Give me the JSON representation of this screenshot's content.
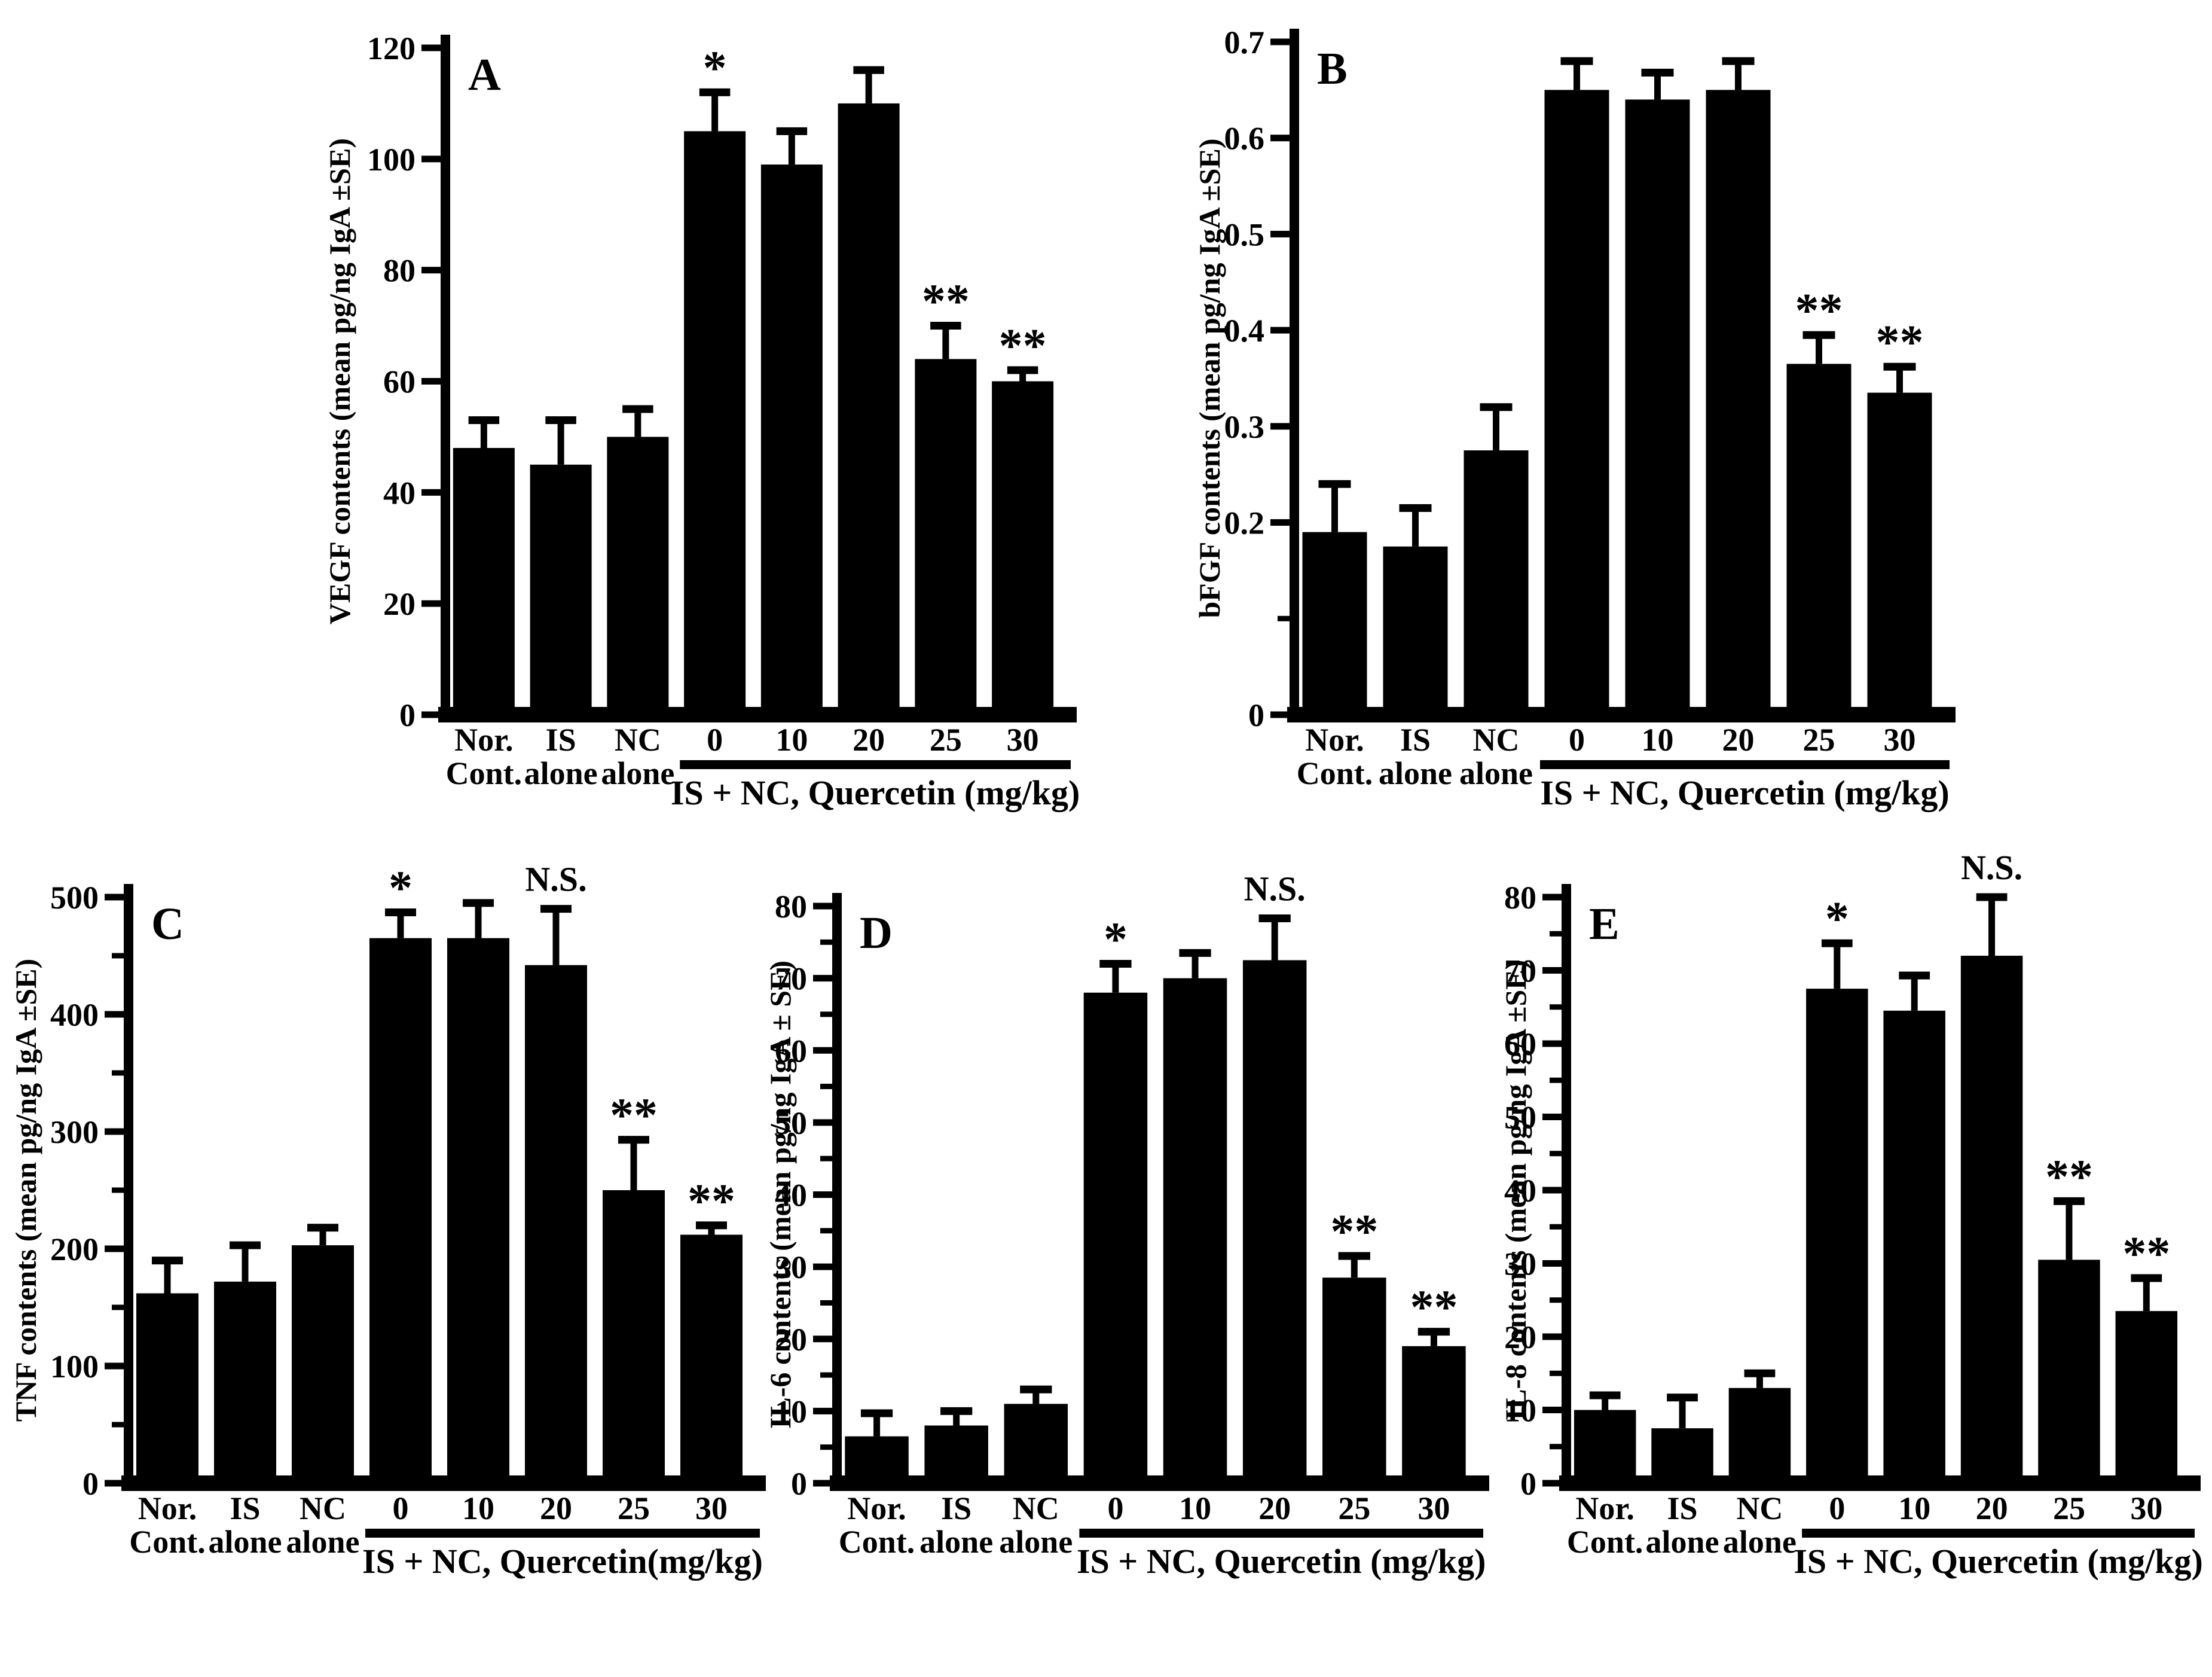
{
  "figure": {
    "description": "Five-panel bar chart figure showing effects of Quercetin on mediator contents",
    "colors": {
      "ink": "#000000",
      "background": "#ffffff"
    }
  },
  "chart_data": [
    {
      "type": "bar",
      "letter": "A",
      "ylabel": "VEGF contents (mean pg/ng IgA ±SE)",
      "ylim": [
        0,
        120
      ],
      "yticks": [
        0,
        20,
        40,
        60,
        80,
        100,
        120
      ],
      "ytick_labels": [
        "0",
        "20",
        "40",
        "60",
        "80",
        "100",
        "120"
      ],
      "minor_ticks": [],
      "grid": false,
      "categories": [
        [
          "Nor.",
          "Cont."
        ],
        [
          "IS",
          "alone"
        ],
        [
          "NC",
          "alone"
        ],
        [
          "0"
        ],
        [
          "10"
        ],
        [
          "20"
        ],
        [
          "25"
        ],
        [
          "30"
        ]
      ],
      "values": [
        48,
        45,
        50,
        105,
        99,
        110,
        64,
        60
      ],
      "errors": [
        5,
        8,
        5,
        7,
        6,
        6,
        6,
        2
      ],
      "sig": [
        "",
        "",
        "",
        "*",
        "",
        "",
        "**",
        "**"
      ],
      "group_label": "IS + NC, Quercetin (mg/kg)",
      "group_start_index": 3
    },
    {
      "type": "bar",
      "letter": "B",
      "ylabel": "bFGF contents (mean pg/ng IgA ±SE)",
      "ylim": [
        0,
        0.7
      ],
      "yticks": [
        0,
        0.2,
        0.3,
        0.4,
        0.5,
        0.6,
        0.7
      ],
      "ytick_labels": [
        "0",
        "0.2",
        "0.3",
        "0.4",
        "0.5",
        "0.6",
        "0.7"
      ],
      "minor_ticks": [
        0.1
      ],
      "grid": false,
      "categories": [
        [
          "Nor.",
          "Cont."
        ],
        [
          "IS",
          "alone"
        ],
        [
          "NC",
          "alone"
        ],
        [
          "0"
        ],
        [
          "10"
        ],
        [
          "20"
        ],
        [
          "25"
        ],
        [
          "30"
        ]
      ],
      "values": [
        0.19,
        0.175,
        0.275,
        0.65,
        0.64,
        0.65,
        0.365,
        0.335
      ],
      "errors": [
        0.05,
        0.04,
        0.045,
        0.03,
        0.028,
        0.03,
        0.03,
        0.027
      ],
      "sig": [
        "",
        "",
        "",
        "",
        "",
        "",
        "**",
        "**"
      ],
      "group_label": "IS + NC, Quercetin (mg/kg)",
      "group_start_index": 3
    },
    {
      "type": "bar",
      "letter": "C",
      "ylabel": "TNF contents (mean pg/ng IgA ±SE)",
      "ylim": [
        0,
        500
      ],
      "yticks": [
        0,
        100,
        200,
        300,
        400,
        500
      ],
      "ytick_labels": [
        "0",
        "100",
        "200",
        "300",
        "400",
        "500"
      ],
      "minor_ticks": [
        50,
        150,
        250,
        350,
        450
      ],
      "grid": false,
      "categories": [
        [
          "Nor.",
          "Cont."
        ],
        [
          "IS",
          "alone"
        ],
        [
          "NC",
          "alone"
        ],
        [
          "0"
        ],
        [
          "10"
        ],
        [
          "20"
        ],
        [
          "25"
        ],
        [
          "30"
        ]
      ],
      "values": [
        162,
        172,
        203,
        465,
        465,
        442,
        250,
        212
      ],
      "errors": [
        28,
        31,
        15,
        22,
        30,
        48,
        43,
        8
      ],
      "sig": [
        "",
        "",
        "",
        "*",
        "",
        "N.S.",
        "**",
        "**"
      ],
      "group_label": "IS + NC, Quercetin(mg/kg)",
      "group_start_index": 3
    },
    {
      "type": "bar",
      "letter": "D",
      "ylabel": "IL-6 contents (mean pg/ng IgA ± SE)",
      "ylim": [
        0,
        80
      ],
      "yticks": [
        0,
        10,
        20,
        30,
        40,
        50,
        60,
        70,
        80
      ],
      "ytick_labels": [
        "0",
        "10",
        "20",
        "30",
        "40",
        "50",
        "60",
        "70",
        "80"
      ],
      "minor_ticks": [
        5,
        15,
        25,
        35,
        45,
        55,
        65,
        75
      ],
      "grid": false,
      "categories": [
        [
          "Nor.",
          "Cont."
        ],
        [
          "IS",
          "alone"
        ],
        [
          "NC",
          "alone"
        ],
        [
          "0"
        ],
        [
          "10"
        ],
        [
          "20"
        ],
        [
          "25"
        ],
        [
          "30"
        ]
      ],
      "values": [
        6.5,
        8,
        11,
        68,
        70,
        72.5,
        28.5,
        19
      ],
      "errors": [
        3.2,
        2,
        2,
        4,
        3.5,
        5.8,
        3,
        2
      ],
      "sig": [
        "",
        "",
        "",
        "*",
        "",
        "N.S.",
        "**",
        "**"
      ],
      "group_label": "IS + NC, Quercetin (mg/kg)",
      "group_start_index": 3
    },
    {
      "type": "bar",
      "letter": "E",
      "ylabel": "IL-8 contents (mean pg/ng IgA ±SE)",
      "ylim": [
        0,
        80
      ],
      "yticks": [
        0,
        10,
        20,
        30,
        40,
        50,
        60,
        70,
        80
      ],
      "ytick_labels": [
        "0",
        "10",
        "20",
        "30",
        "40",
        "50",
        "60",
        "70",
        "80"
      ],
      "minor_ticks": [
        5,
        15,
        25,
        35,
        45,
        55,
        65,
        75
      ],
      "grid": false,
      "categories": [
        [
          "Nor.",
          "Cont."
        ],
        [
          "IS",
          "alone"
        ],
        [
          "NC",
          "alone"
        ],
        [
          "0"
        ],
        [
          "10"
        ],
        [
          "20"
        ],
        [
          "25"
        ],
        [
          "30"
        ]
      ],
      "values": [
        10,
        7.5,
        13,
        67.5,
        64.5,
        72,
        30.5,
        23.5
      ],
      "errors": [
        2,
        4.2,
        2,
        6.2,
        4.8,
        8,
        8,
        4.5
      ],
      "sig": [
        "",
        "",
        "",
        "*",
        "",
        "N.S.",
        "**",
        "**"
      ],
      "group_label": "IS + NC, Quercetin (mg/kg)",
      "group_start_index": 3
    }
  ]
}
